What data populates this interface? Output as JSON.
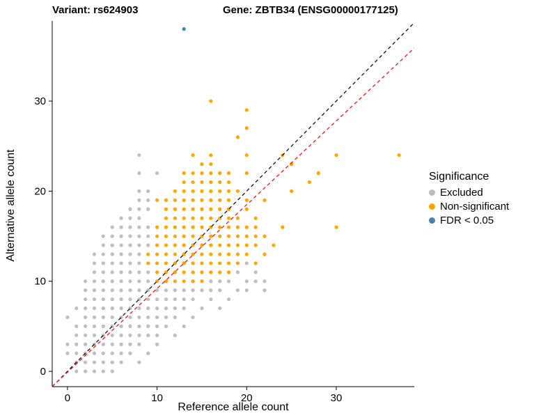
{
  "header": {
    "variant_label": "Variant: rs624903",
    "gene_label": "Gene: ZBTB34 (ENSG00000177125)"
  },
  "legend": {
    "title": "Significance"
  },
  "chart_data": {
    "type": "scatter",
    "title": "",
    "xlabel": "Reference allele count",
    "ylabel": "Alternative allele count",
    "xlim": [
      -1.7,
      38.7
    ],
    "ylim": [
      -1.7,
      38.9
    ],
    "x_ticks": [
      0,
      10,
      20,
      30
    ],
    "y_ticks": [
      0,
      10,
      20,
      30
    ],
    "grid": false,
    "legend_position": "right",
    "lines": [
      {
        "name": "identity-line",
        "style": "dashed",
        "color": "#000000",
        "slope": 1.0,
        "intercept": 0.0
      },
      {
        "name": "regression-line",
        "style": "dashed",
        "color": "#FF0000",
        "slope": 0.93,
        "intercept": -0.1
      }
    ],
    "series": [
      {
        "name": "Excluded",
        "color": "#BEBEBE",
        "points": [
          [
            1,
            0
          ],
          [
            2,
            0
          ],
          [
            3,
            0
          ],
          [
            4,
            0
          ],
          [
            5,
            0
          ],
          [
            1,
            1
          ],
          [
            2,
            1
          ],
          [
            3,
            1
          ],
          [
            4,
            1
          ],
          [
            5,
            1
          ],
          [
            6,
            1
          ],
          [
            8,
            1
          ],
          [
            0,
            2
          ],
          [
            1,
            2
          ],
          [
            2,
            2
          ],
          [
            3,
            2
          ],
          [
            4,
            2
          ],
          [
            5,
            2
          ],
          [
            6,
            2
          ],
          [
            7,
            2
          ],
          [
            9,
            2
          ],
          [
            0,
            3
          ],
          [
            1,
            3
          ],
          [
            2,
            3
          ],
          [
            3,
            3
          ],
          [
            4,
            3
          ],
          [
            5,
            3
          ],
          [
            6,
            3
          ],
          [
            7,
            3
          ],
          [
            8,
            3
          ],
          [
            10,
            3
          ],
          [
            1,
            4
          ],
          [
            2,
            4
          ],
          [
            3,
            4
          ],
          [
            4,
            4
          ],
          [
            5,
            4
          ],
          [
            6,
            4
          ],
          [
            7,
            4
          ],
          [
            8,
            4
          ],
          [
            9,
            4
          ],
          [
            10,
            4
          ],
          [
            12,
            4
          ],
          [
            1,
            5
          ],
          [
            2,
            5
          ],
          [
            3,
            5
          ],
          [
            4,
            5
          ],
          [
            5,
            5
          ],
          [
            6,
            5
          ],
          [
            7,
            5
          ],
          [
            8,
            5
          ],
          [
            9,
            5
          ],
          [
            10,
            5
          ],
          [
            11,
            5
          ],
          [
            13,
            5
          ],
          [
            0,
            6
          ],
          [
            2,
            6
          ],
          [
            3,
            6
          ],
          [
            4,
            6
          ],
          [
            5,
            6
          ],
          [
            6,
            6
          ],
          [
            7,
            6
          ],
          [
            8,
            6
          ],
          [
            9,
            6
          ],
          [
            10,
            6
          ],
          [
            11,
            6
          ],
          [
            12,
            6
          ],
          [
            14,
            6
          ],
          [
            1,
            7
          ],
          [
            2,
            7
          ],
          [
            3,
            7
          ],
          [
            4,
            7
          ],
          [
            5,
            7
          ],
          [
            6,
            7
          ],
          [
            7,
            7
          ],
          [
            8,
            7
          ],
          [
            9,
            7
          ],
          [
            10,
            7
          ],
          [
            11,
            7
          ],
          [
            12,
            7
          ],
          [
            13,
            7
          ],
          [
            15,
            7
          ],
          [
            17,
            7
          ],
          [
            2,
            8
          ],
          [
            3,
            8
          ],
          [
            4,
            8
          ],
          [
            5,
            8
          ],
          [
            6,
            8
          ],
          [
            7,
            8
          ],
          [
            8,
            8
          ],
          [
            9,
            8
          ],
          [
            10,
            8
          ],
          [
            11,
            8
          ],
          [
            12,
            8
          ],
          [
            13,
            8
          ],
          [
            14,
            8
          ],
          [
            16,
            8
          ],
          [
            18,
            8
          ],
          [
            2,
            9
          ],
          [
            3,
            9
          ],
          [
            4,
            9
          ],
          [
            5,
            9
          ],
          [
            6,
            9
          ],
          [
            7,
            9
          ],
          [
            8,
            9
          ],
          [
            9,
            9
          ],
          [
            10,
            9
          ],
          [
            11,
            9
          ],
          [
            12,
            9
          ],
          [
            13,
            9
          ],
          [
            14,
            9
          ],
          [
            15,
            9
          ],
          [
            16,
            9
          ],
          [
            17,
            9
          ],
          [
            19,
            9
          ],
          [
            20,
            9
          ],
          [
            22,
            9
          ],
          [
            2,
            10
          ],
          [
            3,
            10
          ],
          [
            4,
            10
          ],
          [
            5,
            10
          ],
          [
            6,
            10
          ],
          [
            7,
            10
          ],
          [
            8,
            10
          ],
          [
            9,
            10
          ],
          [
            16,
            10
          ],
          [
            17,
            10
          ],
          [
            18,
            10
          ],
          [
            20,
            10
          ],
          [
            21,
            10
          ],
          [
            22,
            10
          ],
          [
            3,
            11
          ],
          [
            4,
            11
          ],
          [
            5,
            11
          ],
          [
            6,
            11
          ],
          [
            7,
            11
          ],
          [
            8,
            11
          ],
          [
            9,
            11
          ],
          [
            19,
            11
          ],
          [
            21,
            11
          ],
          [
            3,
            12
          ],
          [
            4,
            12
          ],
          [
            5,
            12
          ],
          [
            6,
            12
          ],
          [
            7,
            12
          ],
          [
            8,
            12
          ],
          [
            20,
            12
          ],
          [
            3,
            13
          ],
          [
            4,
            13
          ],
          [
            5,
            13
          ],
          [
            6,
            13
          ],
          [
            7,
            13
          ],
          [
            8,
            13
          ],
          [
            4,
            14
          ],
          [
            5,
            14
          ],
          [
            6,
            14
          ],
          [
            7,
            14
          ],
          [
            8,
            14
          ],
          [
            9,
            14
          ],
          [
            4,
            15
          ],
          [
            5,
            15
          ],
          [
            6,
            15
          ],
          [
            7,
            15
          ],
          [
            8,
            15
          ],
          [
            9,
            15
          ],
          [
            5,
            16
          ],
          [
            6,
            16
          ],
          [
            7,
            16
          ],
          [
            8,
            16
          ],
          [
            9,
            16
          ],
          [
            6,
            17
          ],
          [
            7,
            17
          ],
          [
            8,
            17
          ],
          [
            7,
            18
          ],
          [
            8,
            18
          ],
          [
            9,
            18
          ],
          [
            8,
            19
          ],
          [
            9,
            19
          ],
          [
            8,
            20
          ],
          [
            9,
            20
          ],
          [
            8,
            22
          ],
          [
            10,
            22
          ],
          [
            8,
            24
          ]
        ]
      },
      {
        "name": "Non-significant",
        "color": "#FFA500",
        "points": [
          [
            10,
            10
          ],
          [
            11,
            10
          ],
          [
            12,
            10
          ],
          [
            13,
            10
          ],
          [
            14,
            10
          ],
          [
            15,
            10
          ],
          [
            10,
            11
          ],
          [
            11,
            11
          ],
          [
            12,
            11
          ],
          [
            13,
            11
          ],
          [
            14,
            11
          ],
          [
            15,
            11
          ],
          [
            16,
            11
          ],
          [
            17,
            11
          ],
          [
            18,
            11
          ],
          [
            9,
            12
          ],
          [
            10,
            12
          ],
          [
            11,
            12
          ],
          [
            12,
            12
          ],
          [
            13,
            12
          ],
          [
            14,
            12
          ],
          [
            15,
            12
          ],
          [
            16,
            12
          ],
          [
            17,
            12
          ],
          [
            18,
            12
          ],
          [
            19,
            12
          ],
          [
            21,
            12
          ],
          [
            9,
            13
          ],
          [
            10,
            13
          ],
          [
            11,
            13
          ],
          [
            12,
            13
          ],
          [
            13,
            13
          ],
          [
            14,
            13
          ],
          [
            15,
            13
          ],
          [
            16,
            13
          ],
          [
            17,
            13
          ],
          [
            18,
            13
          ],
          [
            19,
            13
          ],
          [
            20,
            13
          ],
          [
            22,
            13
          ],
          [
            10,
            14
          ],
          [
            11,
            14
          ],
          [
            12,
            14
          ],
          [
            13,
            14
          ],
          [
            14,
            14
          ],
          [
            15,
            14
          ],
          [
            16,
            14
          ],
          [
            17,
            14
          ],
          [
            18,
            14
          ],
          [
            19,
            14
          ],
          [
            20,
            14
          ],
          [
            21,
            14
          ],
          [
            23,
            14
          ],
          [
            10,
            15
          ],
          [
            11,
            15
          ],
          [
            12,
            15
          ],
          [
            13,
            15
          ],
          [
            14,
            15
          ],
          [
            15,
            15
          ],
          [
            16,
            15
          ],
          [
            17,
            15
          ],
          [
            18,
            15
          ],
          [
            19,
            15
          ],
          [
            20,
            15
          ],
          [
            21,
            15
          ],
          [
            22,
            15
          ],
          [
            10,
            16
          ],
          [
            11,
            16
          ],
          [
            12,
            16
          ],
          [
            13,
            16
          ],
          [
            14,
            16
          ],
          [
            15,
            16
          ],
          [
            16,
            16
          ],
          [
            17,
            16
          ],
          [
            18,
            16
          ],
          [
            19,
            16
          ],
          [
            20,
            16
          ],
          [
            21,
            16
          ],
          [
            24,
            16
          ],
          [
            30,
            16
          ],
          [
            11,
            17
          ],
          [
            12,
            17
          ],
          [
            13,
            17
          ],
          [
            14,
            17
          ],
          [
            15,
            17
          ],
          [
            16,
            17
          ],
          [
            17,
            17
          ],
          [
            18,
            17
          ],
          [
            19,
            17
          ],
          [
            21,
            17
          ],
          [
            11,
            18
          ],
          [
            12,
            18
          ],
          [
            13,
            18
          ],
          [
            14,
            18
          ],
          [
            15,
            18
          ],
          [
            16,
            18
          ],
          [
            17,
            18
          ],
          [
            18,
            18
          ],
          [
            20,
            18
          ],
          [
            10,
            19
          ],
          [
            11,
            19
          ],
          [
            12,
            19
          ],
          [
            13,
            19
          ],
          [
            14,
            19
          ],
          [
            15,
            19
          ],
          [
            16,
            19
          ],
          [
            17,
            19
          ],
          [
            18,
            19
          ],
          [
            20,
            19
          ],
          [
            22,
            19
          ],
          [
            12,
            20
          ],
          [
            13,
            20
          ],
          [
            14,
            20
          ],
          [
            15,
            20
          ],
          [
            16,
            20
          ],
          [
            17,
            20
          ],
          [
            18,
            20
          ],
          [
            19,
            20
          ],
          [
            25,
            20
          ],
          [
            13,
            21
          ],
          [
            14,
            21
          ],
          [
            15,
            21
          ],
          [
            16,
            21
          ],
          [
            17,
            21
          ],
          [
            18,
            21
          ],
          [
            27,
            21
          ],
          [
            13,
            22
          ],
          [
            14,
            22
          ],
          [
            15,
            22
          ],
          [
            16,
            22
          ],
          [
            17,
            22
          ],
          [
            18,
            22
          ],
          [
            20,
            22
          ],
          [
            28,
            22
          ],
          [
            15,
            23
          ],
          [
            16,
            23
          ],
          [
            25,
            23
          ],
          [
            14,
            24
          ],
          [
            16,
            24
          ],
          [
            20,
            24
          ],
          [
            24,
            24
          ],
          [
            30,
            24
          ],
          [
            37,
            24
          ],
          [
            19,
            26
          ],
          [
            20,
            27
          ],
          [
            20,
            29
          ],
          [
            16,
            30
          ]
        ]
      },
      {
        "name": "FDR < 0.05",
        "color": "#4682B4",
        "points": [
          [
            13,
            38
          ]
        ]
      }
    ]
  }
}
